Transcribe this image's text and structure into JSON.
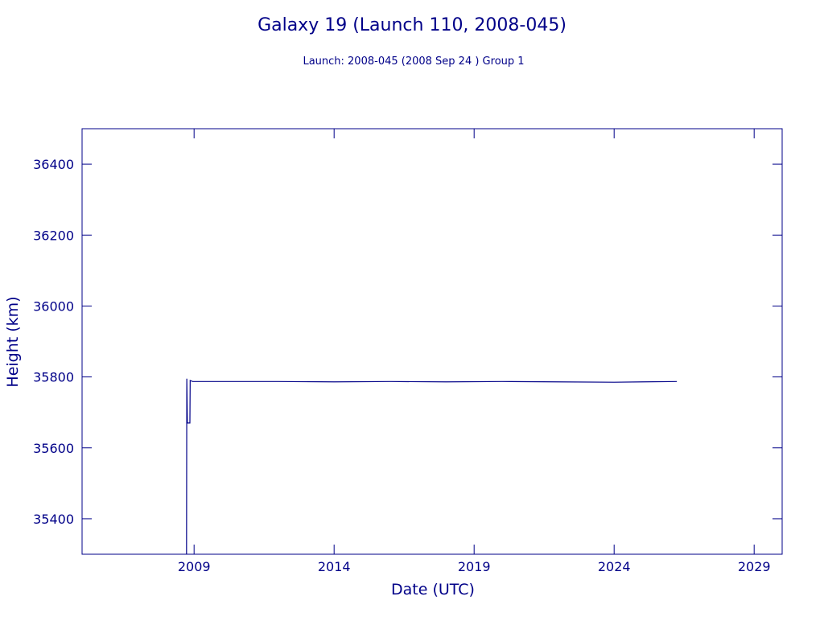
{
  "chart_data": {
    "type": "line",
    "title": "Galaxy 19 (Launch 110, 2008-045)",
    "subtitle": "Launch: 2008-045  (2008 Sep 24 )  Group 1",
    "xlabel": "Date (UTC)",
    "ylabel": "Height (km)",
    "x": [
      2008.73,
      2008.74,
      2008.76,
      2008.85,
      2008.86,
      2008.95,
      2012,
      2014,
      2016,
      2018,
      2020,
      2022,
      2024,
      2025,
      2026.24
    ],
    "values": [
      35300,
      35795,
      35670,
      35670,
      35790,
      35787,
      35787,
      35786,
      35787,
      35786,
      35787,
      35786,
      35785,
      35786,
      35787
    ],
    "color": "#000088",
    "xlim": [
      2005,
      2030
    ],
    "xticks": [
      2009,
      2014,
      2019,
      2024,
      2029
    ],
    "ylim": [
      35300,
      36500
    ],
    "yticks": [
      35400,
      35600,
      35800,
      36000,
      36200,
      36400
    ]
  }
}
